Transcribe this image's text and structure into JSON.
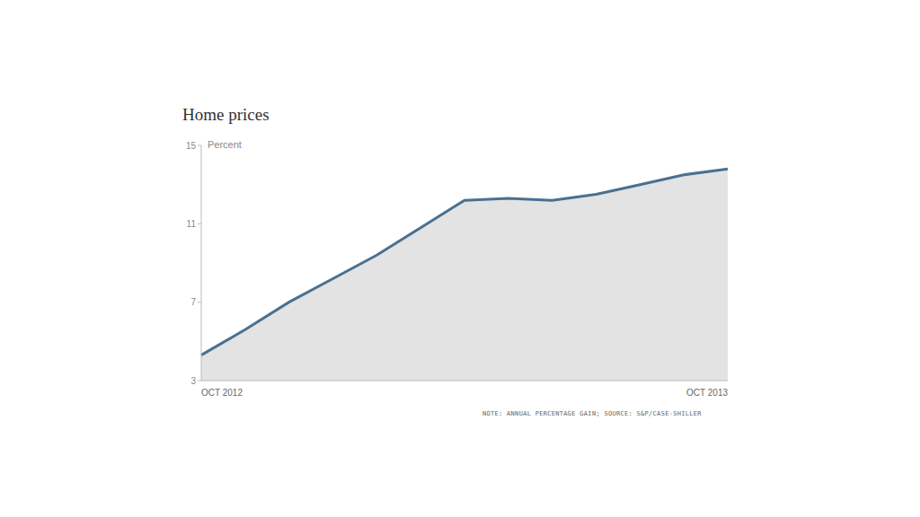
{
  "chart_data": {
    "type": "area",
    "title": "Home prices",
    "ylabel": "Percent",
    "note": "NOTE: ANNUAL PERCENTAGE GAIN; SOURCE: S&P/CASE-SHILLER",
    "categories": [
      "OCT 2012",
      null,
      null,
      null,
      null,
      null,
      null,
      null,
      null,
      null,
      null,
      null,
      "OCT 2013"
    ],
    "values": [
      4.3,
      5.6,
      7.0,
      8.2,
      9.4,
      10.8,
      12.2,
      12.3,
      12.2,
      12.5,
      13.0,
      13.5,
      13.8
    ],
    "color": "#4a7090",
    "ylim": [
      3,
      15
    ],
    "yticks": [
      3,
      7,
      11,
      15
    ],
    "grid": false
  }
}
